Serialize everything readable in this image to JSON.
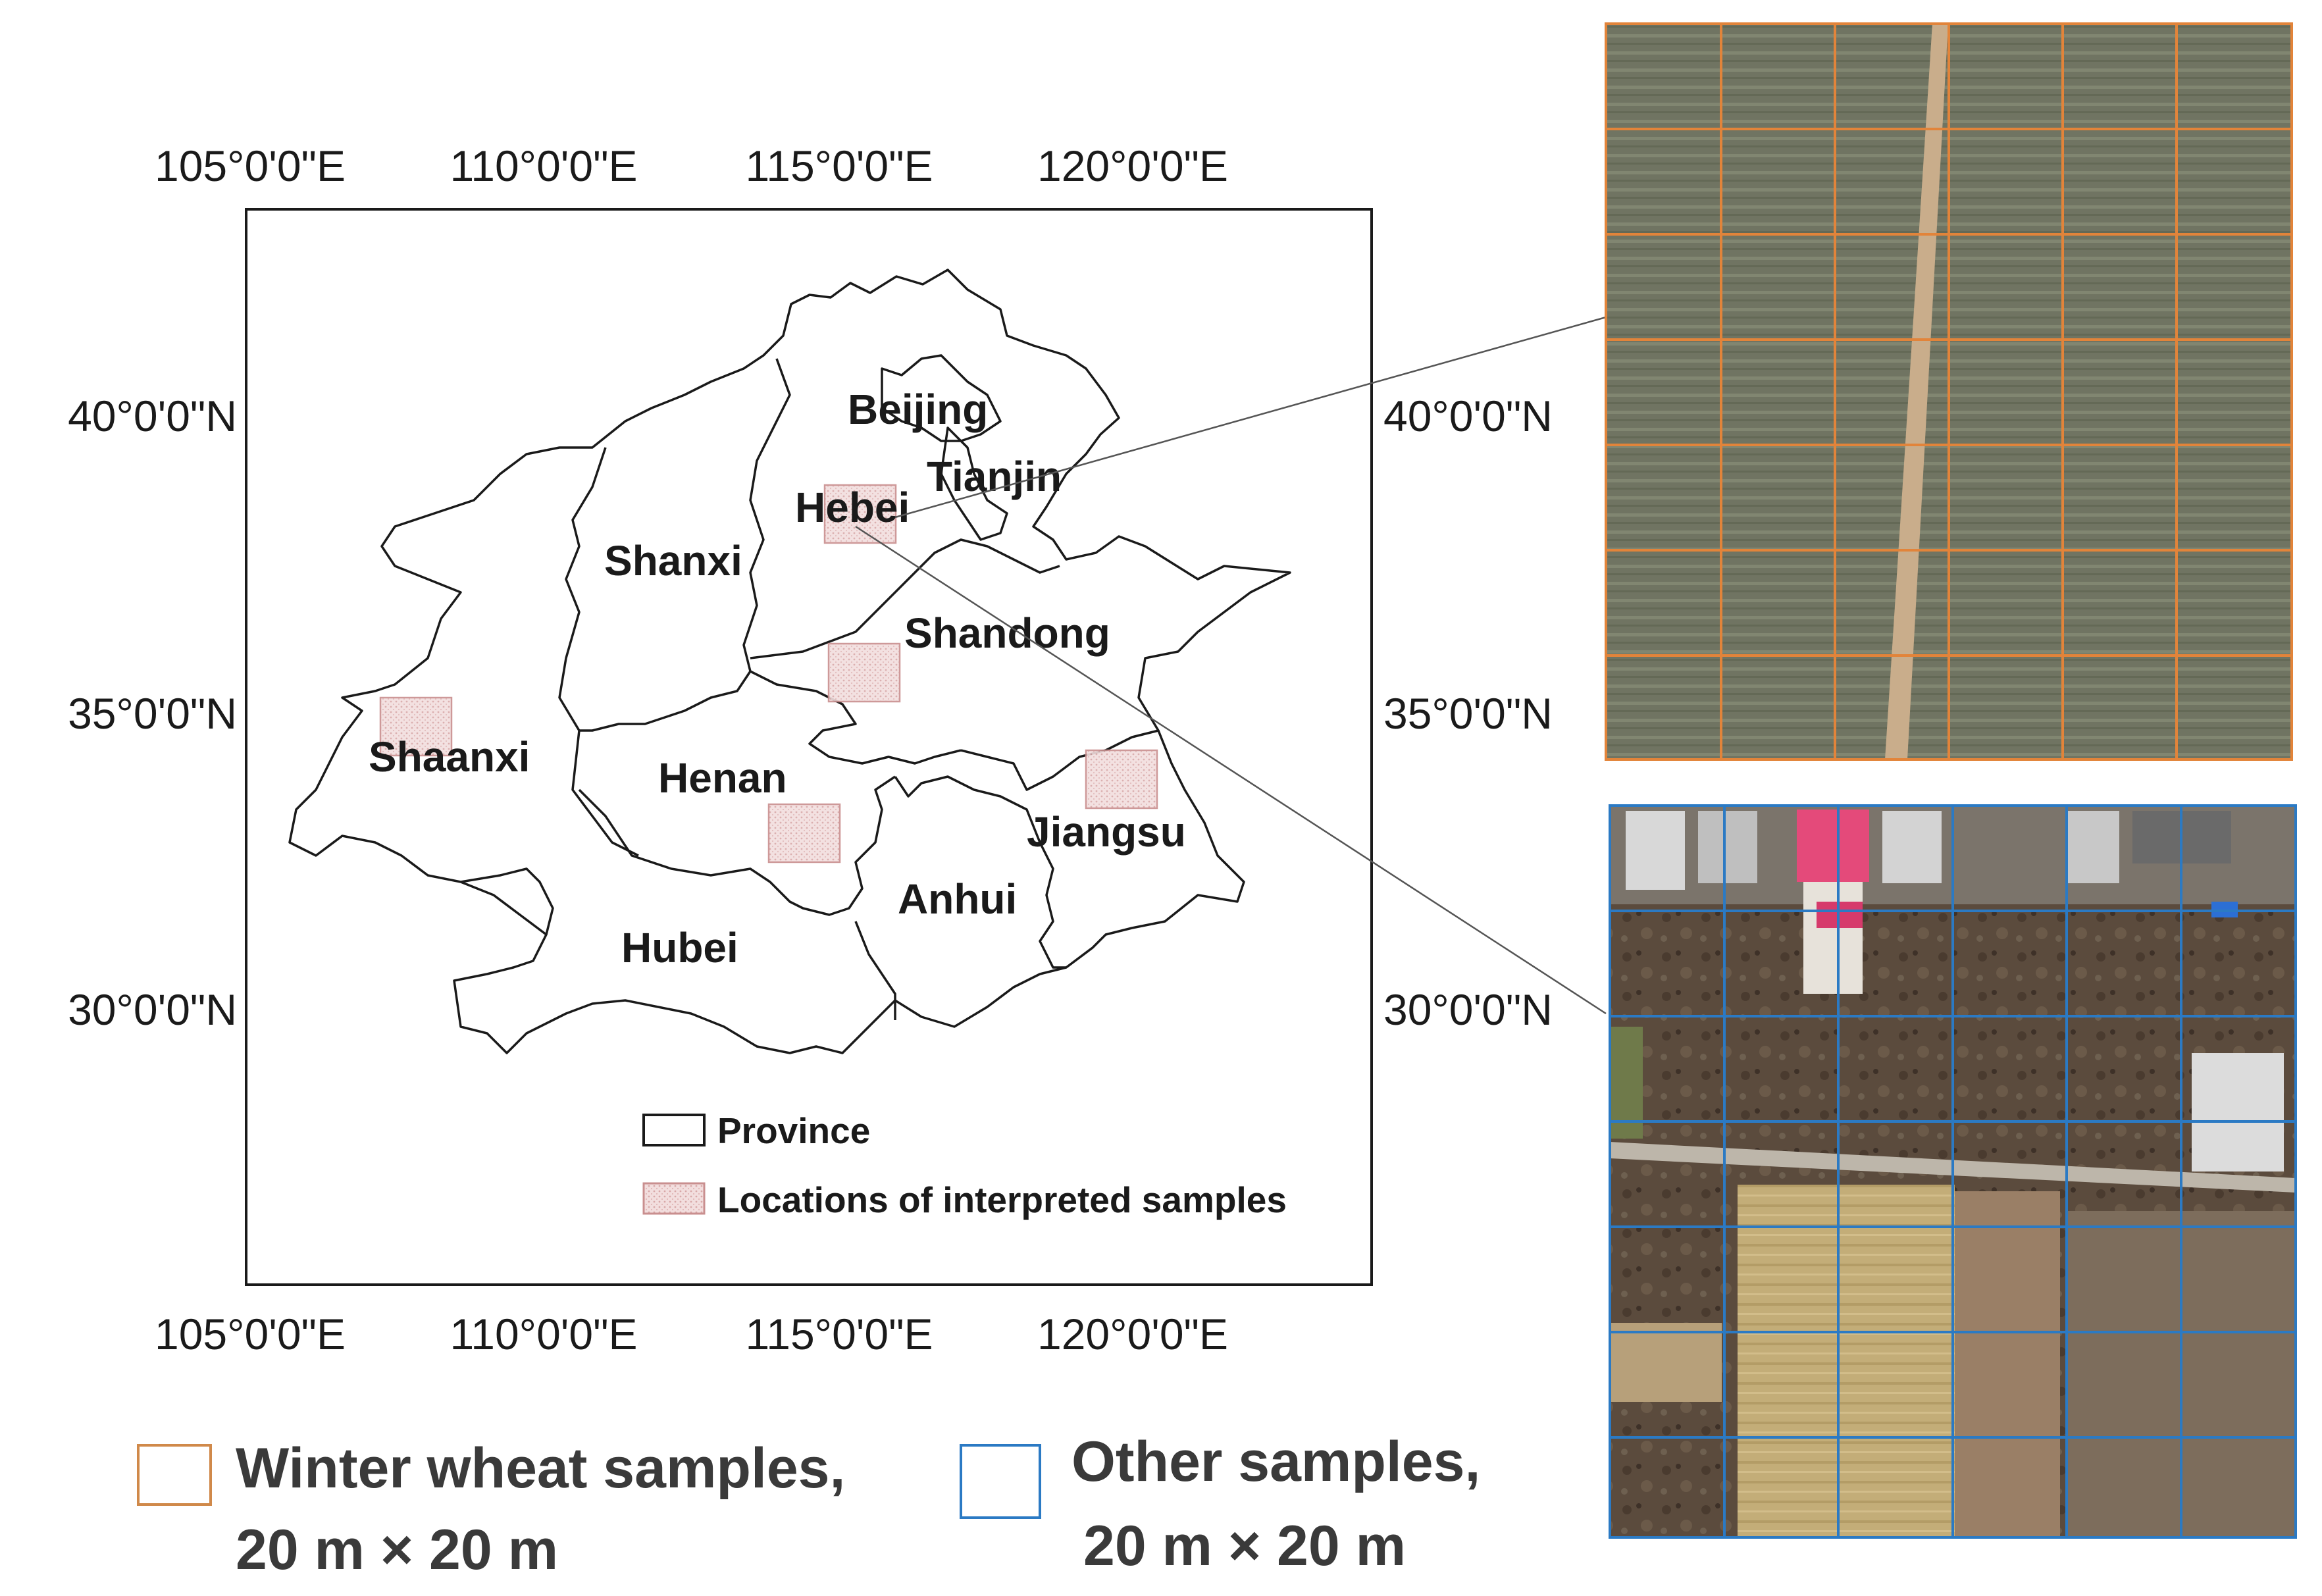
{
  "map": {
    "lon_ticks": [
      "105°0'0\"E",
      "110°0'0\"E",
      "115°0'0\"E",
      "120°0'0\"E"
    ],
    "lat_ticks": [
      "40°0'0\"N",
      "35°0'0\"N",
      "30°0'0\"N"
    ],
    "provinces": [
      "Beijing",
      "Tianjin",
      "Hebei",
      "Shanxi",
      "Shandong",
      "Shaanxi",
      "Henan",
      "Jiangsu",
      "Anhui",
      "Hubei"
    ],
    "legend": {
      "province": "Province",
      "samples": "Locations of interpreted samples"
    },
    "colors": {
      "boundary": "#1a1a1a",
      "sample_fill": "#efd6d6",
      "sample_edge": "#c98f8f"
    }
  },
  "panels": {
    "wheat": {
      "grid_color": "#e2843a",
      "field_color": "#6e735f",
      "road_color": "#c8ad8c"
    },
    "other": {
      "grid_color": "#2b7ac4",
      "soil_color": "#5a4a3c",
      "farmland_color": "#c6b07a"
    }
  },
  "bottom_legend": {
    "wheat_line1": "Winter wheat samples,",
    "wheat_line2": "20 m × 20 m",
    "other_line1": "Other samples,",
    "other_line2": "20 m × 20 m",
    "wheat_color": "#d0894a",
    "other_color": "#2b7ac4"
  }
}
